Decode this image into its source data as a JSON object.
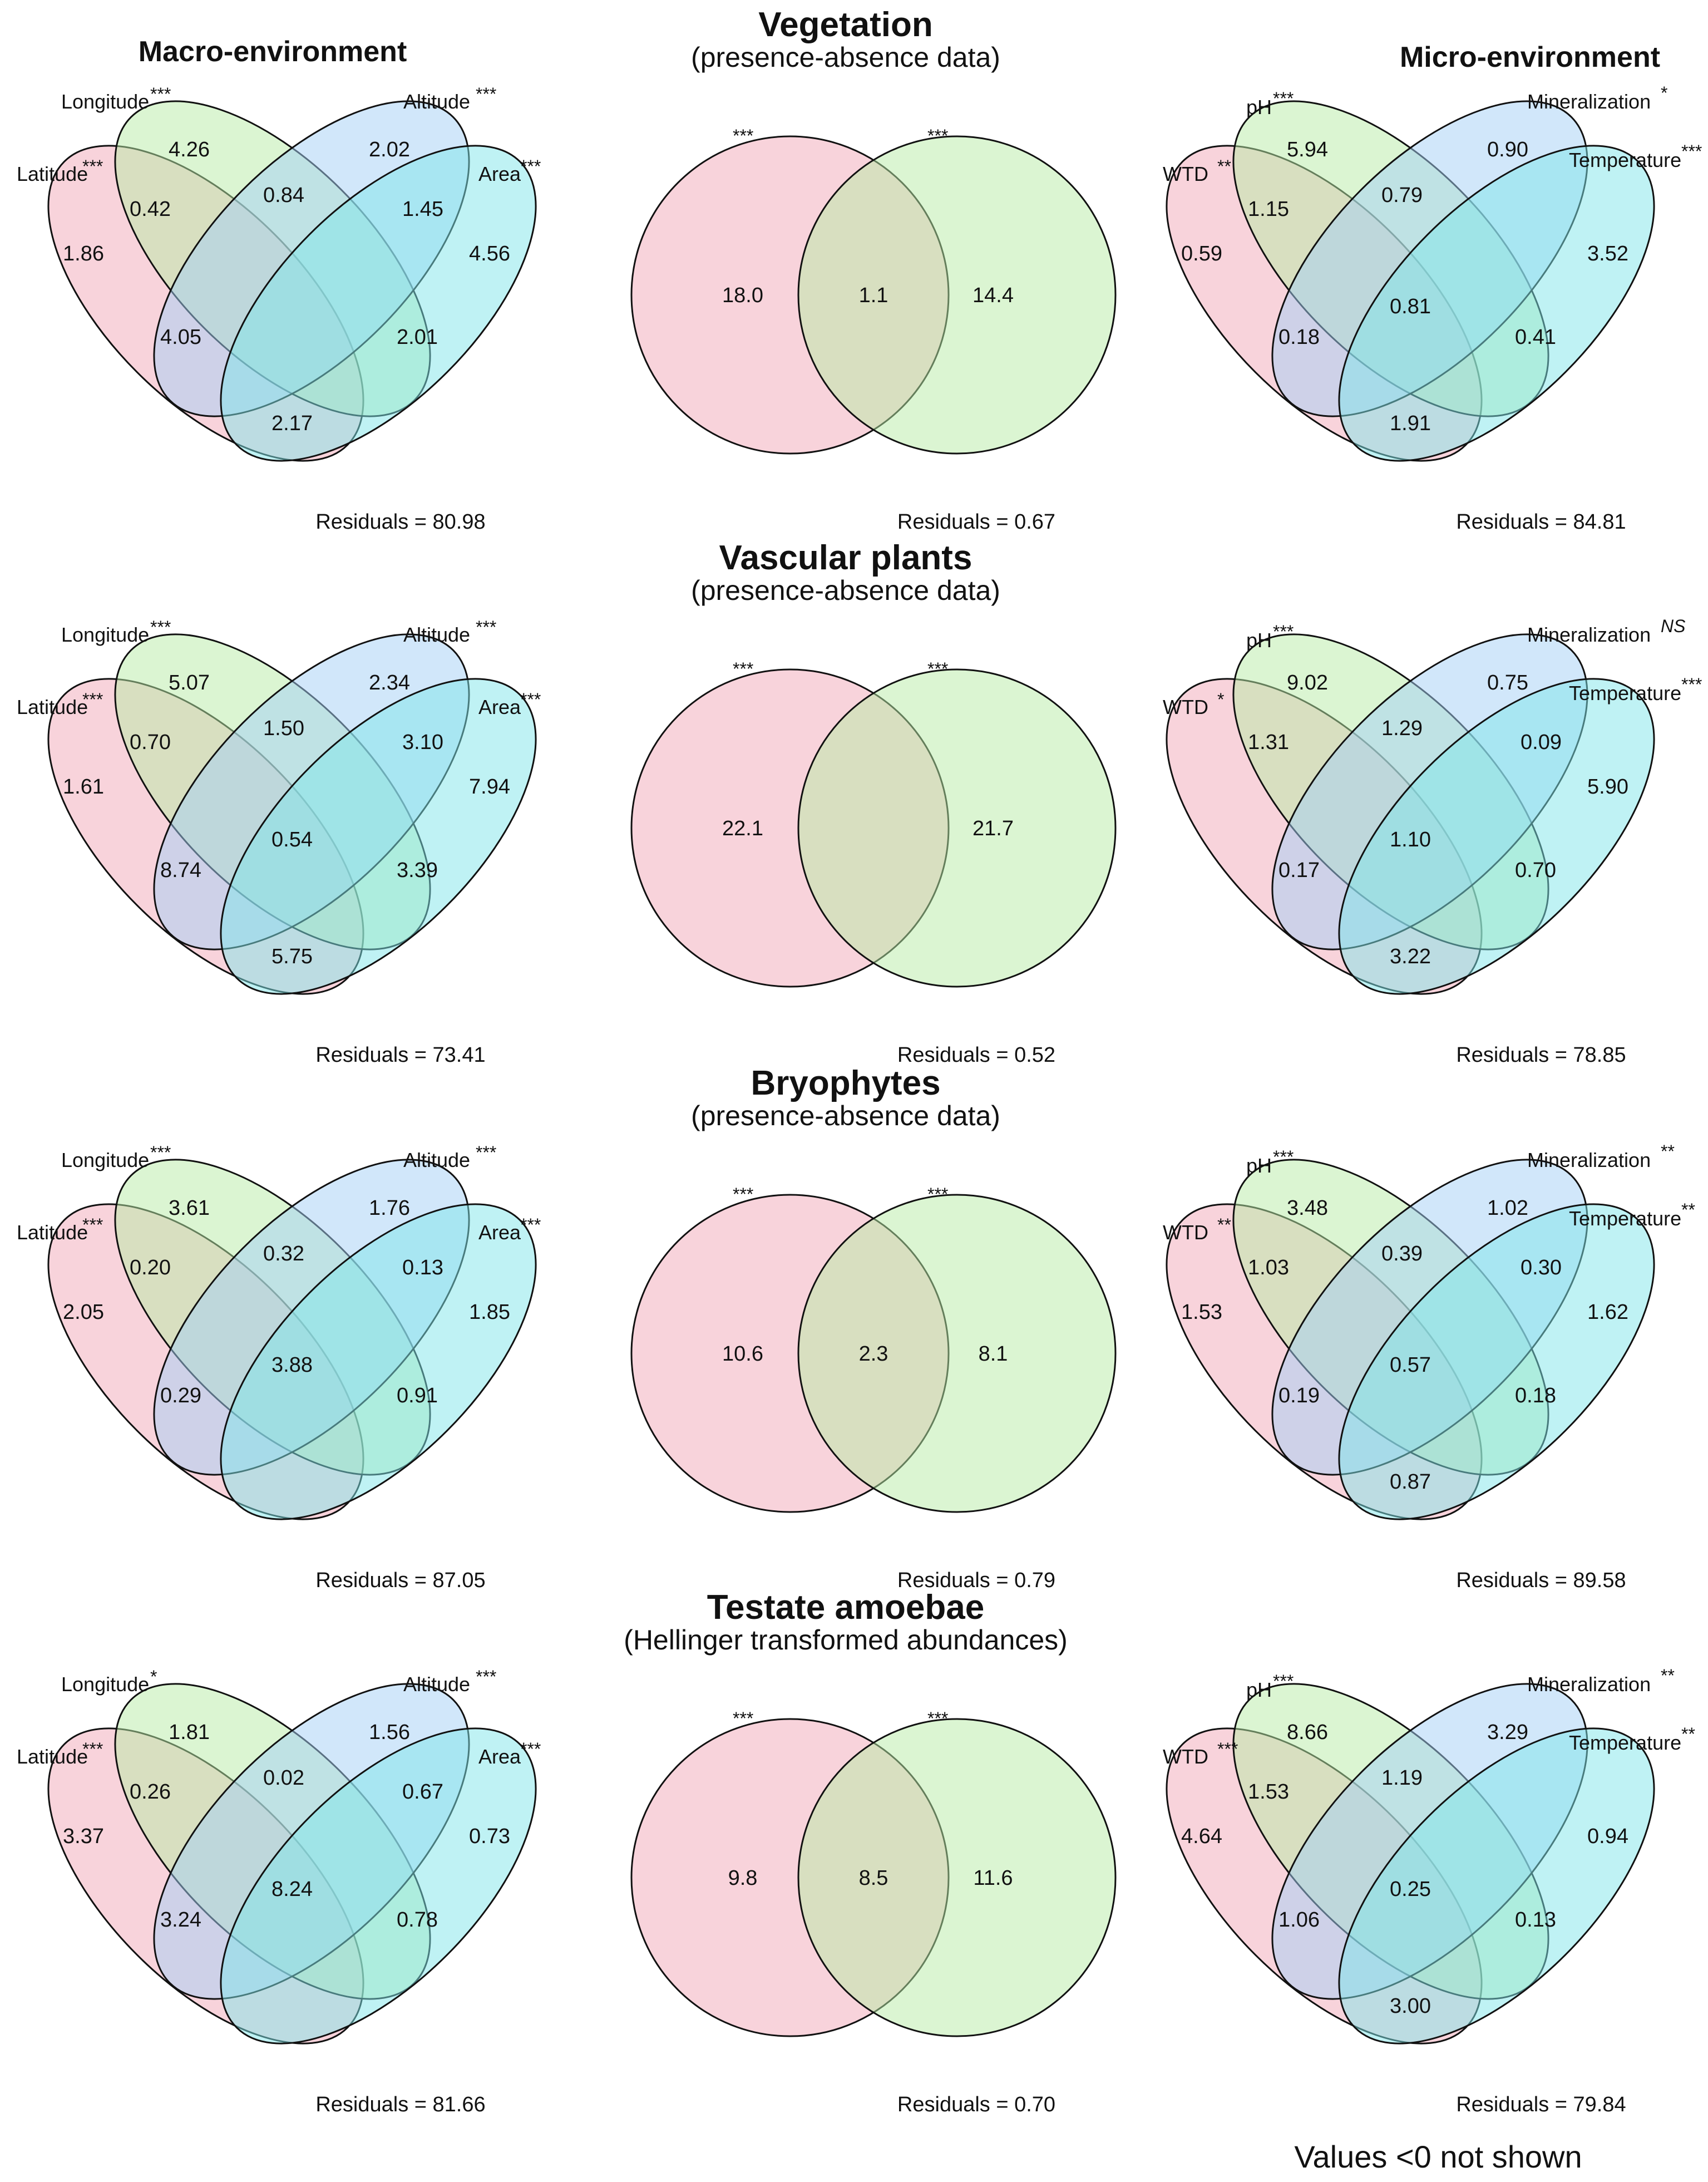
{
  "column_headers": {
    "macro": "Macro-environment",
    "micro": "Micro-environment"
  },
  "footnote": "Values <0 not shown",
  "colors": {
    "red": "#f2a7b8",
    "green": "#b8eca6",
    "blue": "#a3cff5",
    "cyan": "#7fe6ea",
    "stroke": "#111111"
  },
  "rows": [
    {
      "group": "Vegetation",
      "subtitle": "(presence-absence data)",
      "macro": {
        "labels": {
          "latitude": {
            "name": "Latitude",
            "sig": "***"
          },
          "longitude": {
            "name": "Longitude",
            "sig": "***"
          },
          "altitude": {
            "name": "Altitude",
            "sig": "***"
          },
          "area": {
            "name": "Area",
            "sig": "***"
          }
        },
        "values": {
          "lat": "1.86",
          "lon": "4.26",
          "alt": "2.02",
          "area": "4.56",
          "lat_lon": "0.42",
          "lon_alt": "0.84",
          "alt_area": "1.45",
          "lat_alt": "4.05",
          "lon_area": "2.01",
          "lat_area": "2.17",
          "center": ""
        },
        "residuals": "Residuals = 80.98"
      },
      "pair": {
        "left_sig": "***",
        "right_sig": "***",
        "left": "18.0",
        "overlap": "1.1",
        "right": "14.4",
        "residuals": "Residuals = 0.67"
      },
      "micro": {
        "labels": {
          "wtd": {
            "name": "WTD",
            "sig": "**"
          },
          "ph": {
            "name": "pH",
            "sig": "***"
          },
          "mineralization": {
            "name": "Mineralization",
            "sig": "*"
          },
          "temperature": {
            "name": "Temperature",
            "sig": "***"
          }
        },
        "values": {
          "wtd": "0.59",
          "ph": "5.94",
          "min": "0.90",
          "temp": "3.52",
          "wtd_ph": "1.15",
          "ph_min": "0.79",
          "min_temp": "",
          "wtd_min": "0.18",
          "ph_temp": "0.41",
          "wtd_temp": "1.91",
          "center": "0.81"
        },
        "residuals": "Residuals = 84.81"
      }
    },
    {
      "group": "Vascular plants",
      "subtitle": "(presence-absence data)",
      "macro": {
        "labels": {
          "latitude": {
            "name": "Latitude",
            "sig": "***"
          },
          "longitude": {
            "name": "Longitude",
            "sig": "***"
          },
          "altitude": {
            "name": "Altitude",
            "sig": "***"
          },
          "area": {
            "name": "Area",
            "sig": "***"
          }
        },
        "values": {
          "lat": "1.61",
          "lon": "5.07",
          "alt": "2.34",
          "area": "7.94",
          "lat_lon": "0.70",
          "lon_alt": "1.50",
          "alt_area": "3.10",
          "lat_alt": "8.74",
          "lon_area": "3.39",
          "lat_area": "5.75",
          "center": "0.54"
        },
        "residuals": "Residuals = 73.41"
      },
      "pair": {
        "left_sig": "***",
        "right_sig": "***",
        "left": "22.1",
        "overlap": "",
        "right": "21.7",
        "residuals": "Residuals = 0.52"
      },
      "micro": {
        "labels": {
          "wtd": {
            "name": "WTD",
            "sig": "*"
          },
          "ph": {
            "name": "pH",
            "sig": "***"
          },
          "mineralization": {
            "name": "Mineralization",
            "sig": "NS"
          },
          "temperature": {
            "name": "Temperature",
            "sig": "***"
          }
        },
        "values": {
          "wtd": "",
          "ph": "9.02",
          "min": "0.75",
          "temp": "5.90",
          "wtd_ph": "1.31",
          "ph_min": "1.29",
          "min_temp": "0.09",
          "wtd_min": "0.17",
          "ph_temp": "0.70",
          "wtd_temp": "3.22",
          "center": "1.10"
        },
        "residuals": "Residuals = 78.85"
      }
    },
    {
      "group": "Bryophytes",
      "subtitle": "(presence-absence data)",
      "macro": {
        "labels": {
          "latitude": {
            "name": "Latitude",
            "sig": "***"
          },
          "longitude": {
            "name": "Longitude",
            "sig": "***"
          },
          "altitude": {
            "name": "Altitude",
            "sig": "***"
          },
          "area": {
            "name": "Area",
            "sig": "***"
          }
        },
        "values": {
          "lat": "2.05",
          "lon": "3.61",
          "alt": "1.76",
          "area": "1.85",
          "lat_lon": "0.20",
          "lon_alt": "0.32",
          "alt_area": "0.13",
          "lat_alt": "0.29",
          "lon_area": "0.91",
          "lat_area": "",
          "center": "3.88"
        },
        "residuals": "Residuals = 87.05"
      },
      "pair": {
        "left_sig": "***",
        "right_sig": "***",
        "left": "10.6",
        "overlap": "2.3",
        "right": "8.1",
        "residuals": "Residuals = 0.79"
      },
      "micro": {
        "labels": {
          "wtd": {
            "name": "WTD",
            "sig": "**"
          },
          "ph": {
            "name": "pH",
            "sig": "***"
          },
          "mineralization": {
            "name": "Mineralization",
            "sig": "**"
          },
          "temperature": {
            "name": "Temperature",
            "sig": "**"
          }
        },
        "values": {
          "wtd": "1.53",
          "ph": "3.48",
          "min": "1.02",
          "temp": "1.62",
          "wtd_ph": "1.03",
          "ph_min": "0.39",
          "min_temp": "0.30",
          "wtd_min": "0.19",
          "ph_temp": "0.18",
          "wtd_temp": "0.87",
          "center": "0.57"
        },
        "residuals": "Residuals = 89.58"
      }
    },
    {
      "group": "Testate amoebae",
      "subtitle": "(Hellinger transformed abundances)",
      "macro": {
        "labels": {
          "latitude": {
            "name": "Latitude",
            "sig": "***"
          },
          "longitude": {
            "name": "Longitude",
            "sig": "*"
          },
          "altitude": {
            "name": "Altitude",
            "sig": "***"
          },
          "area": {
            "name": "Area",
            "sig": "***"
          }
        },
        "values": {
          "lat": "3.37",
          "lon": "1.81",
          "alt": "1.56",
          "area": "0.73",
          "lat_lon": "0.26",
          "lon_alt": "0.02",
          "alt_area": "0.67",
          "lat_alt": "3.24",
          "lon_area": "0.78",
          "lat_area": "",
          "center": "8.24"
        },
        "residuals": "Residuals = 81.66"
      },
      "pair": {
        "left_sig": "***",
        "right_sig": "***",
        "left": "9.8",
        "overlap": "8.5",
        "right": "11.6",
        "residuals": "Residuals = 0.70"
      },
      "micro": {
        "labels": {
          "wtd": {
            "name": "WTD",
            "sig": "***"
          },
          "ph": {
            "name": "pH",
            "sig": "***"
          },
          "mineralization": {
            "name": "Mineralization",
            "sig": "**"
          },
          "temperature": {
            "name": "Temperature",
            "sig": "**"
          }
        },
        "values": {
          "wtd": "4.64",
          "ph": "8.66",
          "min": "3.29",
          "temp": "0.94",
          "wtd_ph": "1.53",
          "ph_min": "1.19",
          "min_temp": "",
          "wtd_min": "1.06",
          "ph_temp": "0.13",
          "wtd_temp": "3.00",
          "center": "0.25"
        },
        "residuals": "Residuals = 79.84"
      }
    }
  ]
}
